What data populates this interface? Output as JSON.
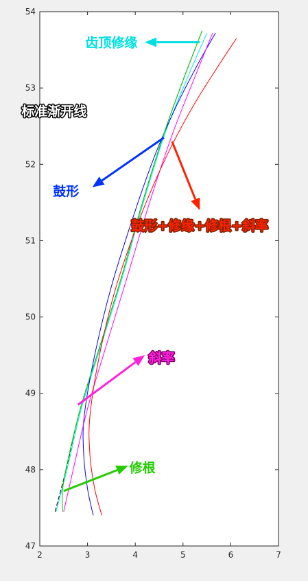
{
  "chart_data": {
    "type": "line",
    "title": "",
    "xlabel": "",
    "ylabel": "",
    "xlim": [
      2,
      7
    ],
    "ylim": [
      47,
      54
    ],
    "xticks": [
      "2",
      "3",
      "4",
      "5",
      "6",
      "7"
    ],
    "yticks": [
      "47",
      "48",
      "49",
      "50",
      "51",
      "52",
      "53",
      "54"
    ],
    "grid": false,
    "series": [
      {
        "key": "standard",
        "color": "#000000",
        "dash": true,
        "points": [
          [
            2.32,
            47.45
          ],
          [
            2.55,
            48.0
          ],
          [
            2.85,
            48.8
          ],
          [
            3.25,
            49.6
          ],
          [
            3.7,
            50.5
          ],
          [
            4.15,
            51.5
          ],
          [
            4.6,
            52.4
          ],
          [
            5.0,
            53.1
          ],
          [
            5.4,
            53.75
          ]
        ]
      },
      {
        "key": "tip",
        "color": "#00e6e6",
        "points": [
          [
            2.34,
            47.45
          ],
          [
            2.57,
            48.0
          ],
          [
            2.87,
            48.8
          ],
          [
            3.27,
            49.6
          ],
          [
            3.72,
            50.5
          ],
          [
            4.17,
            51.5
          ],
          [
            4.62,
            52.4
          ],
          [
            5.07,
            53.1
          ],
          [
            5.5,
            53.72
          ]
        ]
      },
      {
        "key": "crown",
        "color": "#0000ff",
        "points": [
          [
            3.12,
            47.4
          ],
          [
            3.0,
            47.75
          ],
          [
            2.92,
            48.2
          ],
          [
            2.93,
            48.7
          ],
          [
            3.15,
            49.5
          ],
          [
            3.5,
            50.4
          ],
          [
            3.95,
            51.3
          ],
          [
            4.4,
            52.1
          ],
          [
            4.85,
            52.75
          ],
          [
            5.3,
            53.3
          ],
          [
            5.68,
            53.72
          ]
        ]
      },
      {
        "key": "root",
        "color": "#00cc00",
        "points": [
          [
            2.48,
            47.45
          ],
          [
            2.48,
            47.75
          ],
          [
            2.58,
            48.1
          ],
          [
            2.85,
            48.8
          ],
          [
            3.25,
            49.6
          ],
          [
            3.7,
            50.5
          ],
          [
            4.15,
            51.5
          ],
          [
            4.6,
            52.4
          ],
          [
            5.0,
            53.1
          ],
          [
            5.4,
            53.75
          ]
        ]
      },
      {
        "key": "slope",
        "color": "#ff00ff",
        "points": [
          [
            2.5,
            47.45
          ],
          [
            2.7,
            48.0
          ],
          [
            3.0,
            48.8
          ],
          [
            3.38,
            49.6
          ],
          [
            3.82,
            50.5
          ],
          [
            4.3,
            51.5
          ],
          [
            4.78,
            52.4
          ],
          [
            5.22,
            53.1
          ],
          [
            5.62,
            53.72
          ]
        ]
      },
      {
        "key": "combined",
        "color": "#ff0000",
        "points": [
          [
            3.3,
            47.4
          ],
          [
            3.15,
            47.75
          ],
          [
            3.05,
            48.2
          ],
          [
            3.05,
            48.7
          ],
          [
            3.25,
            49.5
          ],
          [
            3.6,
            50.4
          ],
          [
            4.1,
            51.3
          ],
          [
            4.65,
            52.1
          ],
          [
            5.2,
            52.75
          ],
          [
            5.75,
            53.3
          ],
          [
            6.12,
            53.65
          ]
        ]
      }
    ],
    "annotations": [
      {
        "key": "tip",
        "text": "齿顶修缘",
        "color": "#00e0e0",
        "outline": "#ffffff",
        "arrow_from": [
          5.35,
          53.6
        ],
        "arrow_to": [
          4.2,
          53.6
        ],
        "label_at": [
          3.5,
          53.6
        ]
      },
      {
        "key": "standard",
        "text": "标准渐开线",
        "color": "#ffffff",
        "outline": "#000000",
        "arrow_from": [
          4.55,
          52.55
        ],
        "arrow_to": [
          3.35,
          52.7
        ],
        "label_at": [
          2.3,
          52.7
        ]
      },
      {
        "key": "crown",
        "text": "鼓形",
        "color": "#0033ff",
        "outline": "#ffffff",
        "arrow_from": [
          4.6,
          52.35
        ],
        "arrow_to": [
          3.1,
          51.7
        ],
        "label_at": [
          2.55,
          51.65
        ]
      },
      {
        "key": "combined",
        "text": "鼓形+修缘+修根+斜率",
        "color": "#ff2200",
        "outline": "#7a2200",
        "arrow_from": [
          4.77,
          52.3
        ],
        "arrow_to": [
          5.35,
          51.4
        ],
        "label_at": [
          5.35,
          51.2
        ]
      },
      {
        "key": "slope",
        "text": "斜率",
        "color": "#ff22dd",
        "outline": "#7a0066",
        "arrow_from": [
          2.8,
          48.85
        ],
        "arrow_to": [
          4.2,
          49.5
        ],
        "label_at": [
          4.55,
          49.47
        ]
      },
      {
        "key": "root",
        "text": "修根",
        "color": "#22cc00",
        "outline": "#ffffff",
        "arrow_from": [
          2.5,
          47.72
        ],
        "arrow_to": [
          3.85,
          48.05
        ],
        "label_at": [
          4.15,
          48.03
        ]
      }
    ]
  }
}
